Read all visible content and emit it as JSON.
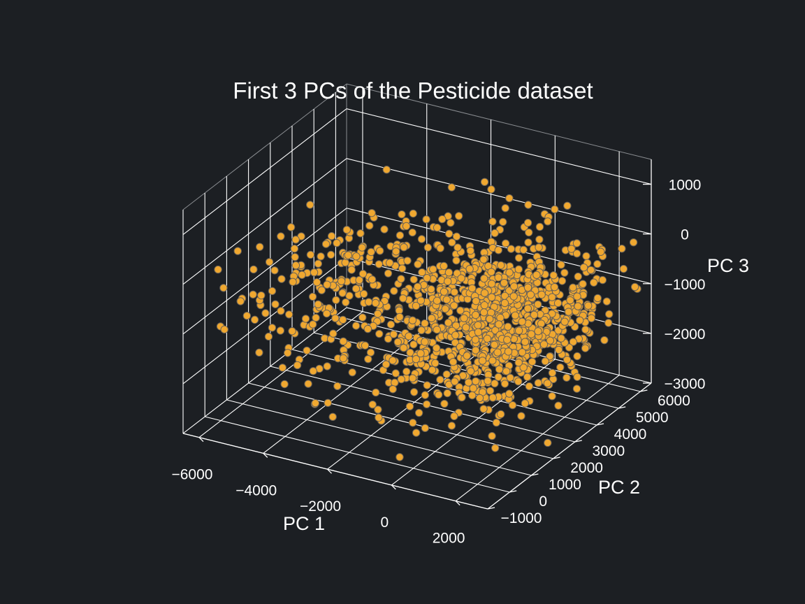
{
  "chart_data": {
    "type": "scatter",
    "title": "First 3 PCs of the Pesticide dataset",
    "xlabel": "PC 1",
    "ylabel": "PC 2",
    "zlabel": "PC 3",
    "x_ticks": [
      "−6000",
      "−4000",
      "−2000",
      "0",
      "2000"
    ],
    "y_ticks": [
      "−1000",
      "0",
      "1000",
      "2000",
      "3000",
      "4000",
      "5000",
      "6000"
    ],
    "z_ticks": [
      "−3000",
      "−2000",
      "−1000",
      "0",
      "1000"
    ],
    "x_range": [
      -6500,
      3000
    ],
    "y_range": [
      -1000,
      6500
    ],
    "z_range": [
      -3000,
      1500
    ],
    "point_color": "#f0a830",
    "point_edge_color": "#6b6358",
    "background": "#1c1f23",
    "grid": true,
    "series": [
      {
        "n_points": 1200,
        "note_points": "dense cloud: PC1 approx -6000..2500, PC2 approx -1000..6500, PC3 approx -3000..1000"
      }
    ]
  }
}
